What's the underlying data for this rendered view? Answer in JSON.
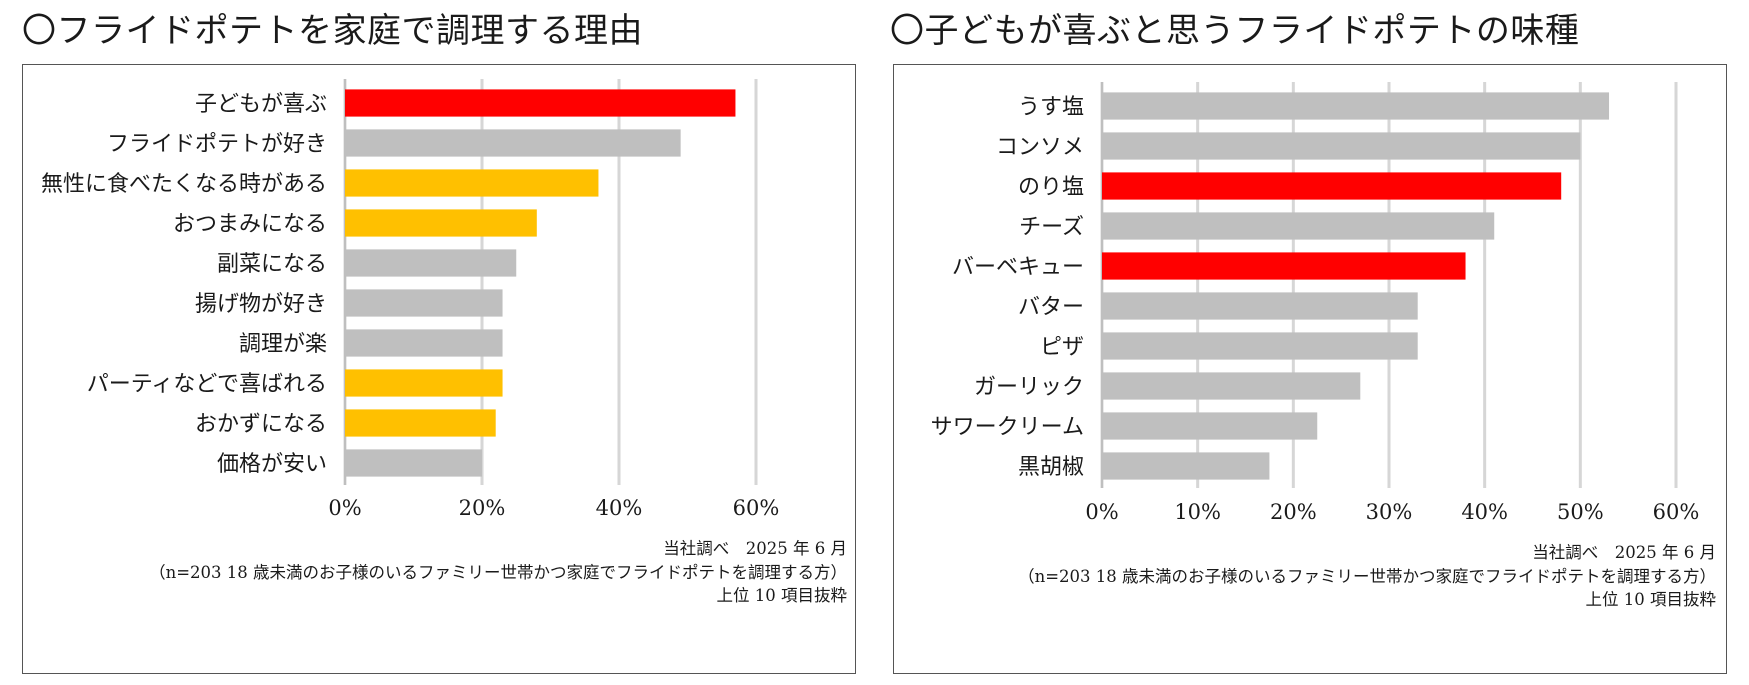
{
  "chart_data": [
    {
      "type": "bar",
      "orientation": "horizontal",
      "title": "〇フライドポテトを家庭で調理する理由",
      "categories": [
        "子どもが喜ぶ",
        "フライドポテトが好き",
        "無性に食べたくなる時がある",
        "おつまみになる",
        "副菜になる",
        "揚げ物が好き",
        "調理が楽",
        "パーティなどで喜ばれる",
        "おかずになる",
        "価格が安い"
      ],
      "values": [
        57,
        49,
        37,
        28,
        25,
        23,
        23,
        23,
        22,
        20
      ],
      "bar_colors": [
        "#ff0000",
        "#bfbfbf",
        "#ffc000",
        "#ffc000",
        "#bfbfbf",
        "#bfbfbf",
        "#bfbfbf",
        "#ffc000",
        "#ffc000",
        "#bfbfbf"
      ],
      "xlim": [
        0,
        60
      ],
      "ticks": [
        0,
        20,
        40,
        60
      ],
      "tick_labels": [
        "0%",
        "20%",
        "40%",
        "60%"
      ],
      "gridlines": true,
      "notes": [
        "当社調べ　2025 年 6 月",
        "（n=203 18 歳未満のお子様のいるファミリー世帯かつ家庭でフライドポテトを調理する方）",
        "上位 10 項目抜粋"
      ]
    },
    {
      "type": "bar",
      "orientation": "horizontal",
      "title": "〇子どもが喜ぶと思うフライドポテトの味種",
      "categories": [
        "うす塩",
        "コンソメ",
        "のり塩",
        "チーズ",
        "バーベキュー",
        "バター",
        "ピザ",
        "ガーリック",
        "サワークリーム",
        "黒胡椒"
      ],
      "values": [
        53,
        50,
        48,
        41,
        38,
        33,
        33,
        27,
        22.5,
        17.5
      ],
      "bar_colors": [
        "#bfbfbf",
        "#bfbfbf",
        "#ff0000",
        "#bfbfbf",
        "#ff0000",
        "#bfbfbf",
        "#bfbfbf",
        "#bfbfbf",
        "#bfbfbf",
        "#bfbfbf"
      ],
      "xlim": [
        0,
        60
      ],
      "ticks": [
        0,
        10,
        20,
        30,
        40,
        50,
        60
      ],
      "tick_labels": [
        "0%",
        "10%",
        "20%",
        "30%",
        "40%",
        "50%",
        "60%"
      ],
      "gridlines": true,
      "notes": [
        "当社調べ　2025 年 6 月",
        "（n=203 18 歳未満のお子様のいるファミリー世帯かつ家庭でフライドポテトを調理する方）",
        "上位 10 項目抜粋"
      ]
    }
  ]
}
